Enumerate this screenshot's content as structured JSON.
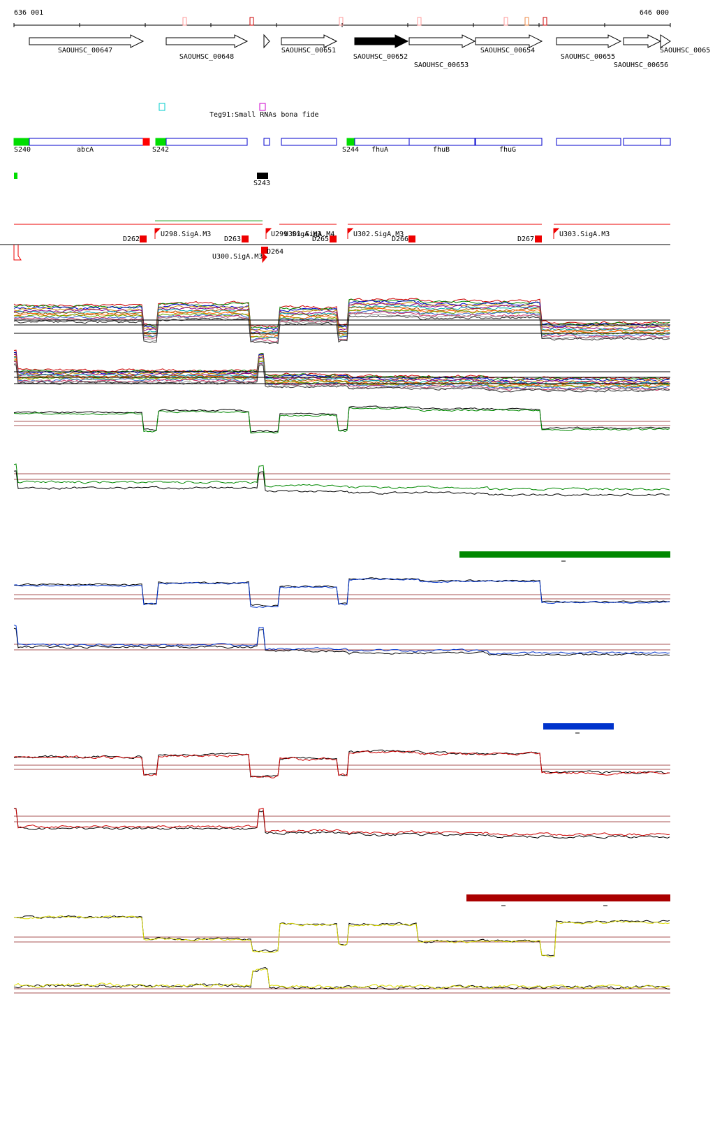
{
  "ruler": {
    "start": "636 001",
    "end": "646 000"
  },
  "genes": [
    "SAOUHSC_00647",
    "SAOUHSC_00648",
    "SAOUHSC_00651",
    "SAOUHSC_00652",
    "SAOUHSC_00653",
    "SAOUHSC_00654",
    "SAOUHSC_00655",
    "SAOUHSC_00656",
    "SAOUHSC_0065"
  ],
  "small_rna": "Teg91:Small RNAs bona fide",
  "features": [
    "S240",
    "abcA",
    "S242",
    "S244",
    "fhuA",
    "fhuB",
    "fhuG",
    "S243"
  ],
  "promoters": [
    "D262",
    "U298.SigA.M3",
    "D263",
    "U299.SigA.M3",
    "U301.SigA.M4",
    "D264",
    "U300.SigA.M3",
    "D265",
    "U302.SigA.M3",
    "D266",
    "D267",
    "U303.SigA.M3"
  ]
}
